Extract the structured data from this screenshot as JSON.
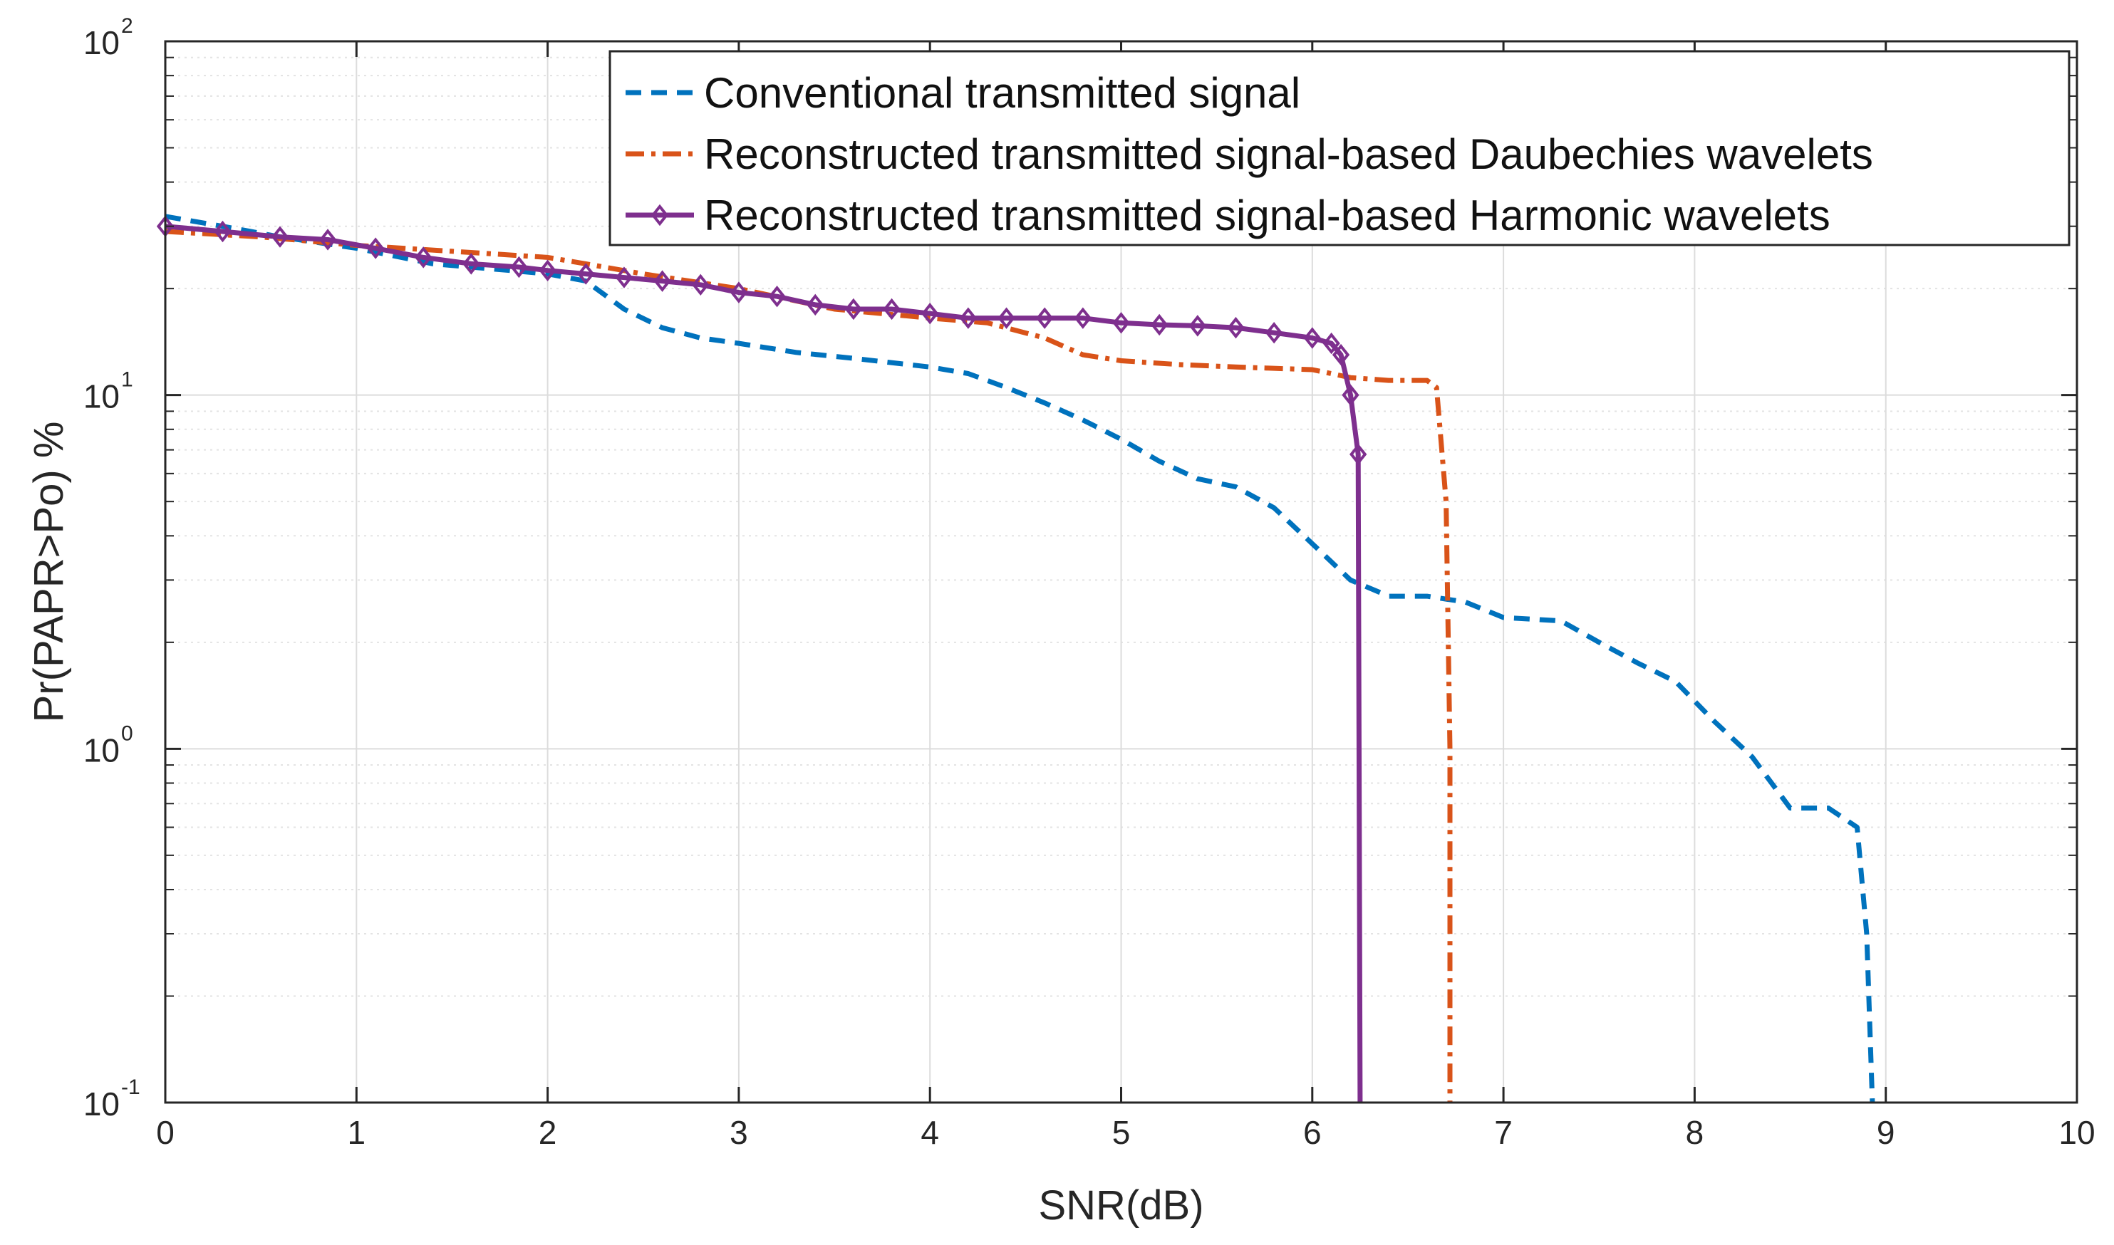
{
  "chart_data": {
    "type": "line",
    "title": "",
    "xlabel": "SNR(dB)",
    "ylabel": "Pr(PAPR>Po) %",
    "xlim": [
      0,
      10
    ],
    "ylim": [
      0.1,
      100
    ],
    "yscale": "log",
    "grid": true,
    "minor_grid": true,
    "legend_position": "top-right",
    "x_ticks": [
      "0",
      "1",
      "2",
      "3",
      "4",
      "5",
      "6",
      "7",
      "8",
      "9",
      "10"
    ],
    "y_ticks": [
      {
        "base": "10",
        "exp": "-1",
        "value": 0.1
      },
      {
        "base": "10",
        "exp": "0",
        "value": 1
      },
      {
        "base": "10",
        "exp": "1",
        "value": 10
      },
      {
        "base": "10",
        "exp": "2",
        "value": 100
      }
    ],
    "series": [
      {
        "name": "Conventional transmitted signal",
        "color": "#0072BD",
        "style": "dashed",
        "marker": "none",
        "x": [
          0,
          0.3,
          0.6,
          1.0,
          1.4,
          1.8,
          2.0,
          2.2,
          2.4,
          2.6,
          2.8,
          3.0,
          3.3,
          3.6,
          4.0,
          4.2,
          4.4,
          4.6,
          4.8,
          5.0,
          5.2,
          5.4,
          5.6,
          5.8,
          6.0,
          6.2,
          6.4,
          6.6,
          6.8,
          7.0,
          7.3,
          7.5,
          7.7,
          7.9,
          8.1,
          8.3,
          8.5,
          8.7,
          8.85,
          8.9,
          8.93
        ],
        "y": [
          32,
          30,
          28,
          26,
          23.5,
          22.5,
          22,
          21,
          17.5,
          15.5,
          14.5,
          14,
          13.2,
          12.7,
          12,
          11.5,
          10.5,
          9.5,
          8.5,
          7.5,
          6.5,
          5.8,
          5.5,
          4.8,
          3.8,
          3.0,
          2.7,
          2.7,
          2.6,
          2.35,
          2.3,
          2.0,
          1.75,
          1.55,
          1.2,
          0.95,
          0.68,
          0.68,
          0.6,
          0.3,
          0.1
        ]
      },
      {
        "name": "Reconstructed transmitted signal-based Daubechies wavelets",
        "color": "#D95319",
        "style": "dashdot",
        "marker": "none",
        "x": [
          0,
          0.5,
          1.0,
          1.5,
          2.0,
          2.2,
          2.5,
          3.0,
          3.5,
          4.0,
          4.3,
          4.6,
          4.8,
          5.0,
          5.3,
          5.6,
          6.0,
          6.2,
          6.4,
          6.6,
          6.65,
          6.7,
          6.72,
          6.72
        ],
        "y": [
          29,
          28,
          26.5,
          25.5,
          24.5,
          23.5,
          22,
          20,
          17.5,
          16.5,
          16,
          14.5,
          13,
          12.5,
          12.2,
          12,
          11.8,
          11.2,
          11,
          11,
          10.5,
          5,
          1,
          0.1
        ]
      },
      {
        "name": "Reconstructed transmitted signal-based Harmonic wavelets",
        "color": "#7E2F8E",
        "style": "solid",
        "marker": "diamond",
        "x": [
          0,
          0.3,
          0.6,
          0.85,
          1.1,
          1.35,
          1.6,
          1.85,
          2.0,
          2.2,
          2.4,
          2.6,
          2.8,
          3.0,
          3.2,
          3.4,
          3.6,
          3.8,
          4.0,
          4.2,
          4.4,
          4.6,
          4.8,
          5.0,
          5.2,
          5.4,
          5.6,
          5.8,
          6.0,
          6.1,
          6.15,
          6.2,
          6.24,
          6.25
        ],
        "y": [
          30,
          29,
          28,
          27.5,
          26,
          24.5,
          23.5,
          23,
          22.5,
          22,
          21.5,
          21,
          20.5,
          19.5,
          19,
          18,
          17.5,
          17.5,
          17,
          16.5,
          16.5,
          16.5,
          16.5,
          16,
          15.8,
          15.7,
          15.5,
          15,
          14.5,
          14,
          13,
          10,
          6.8,
          0.1
        ]
      }
    ]
  }
}
